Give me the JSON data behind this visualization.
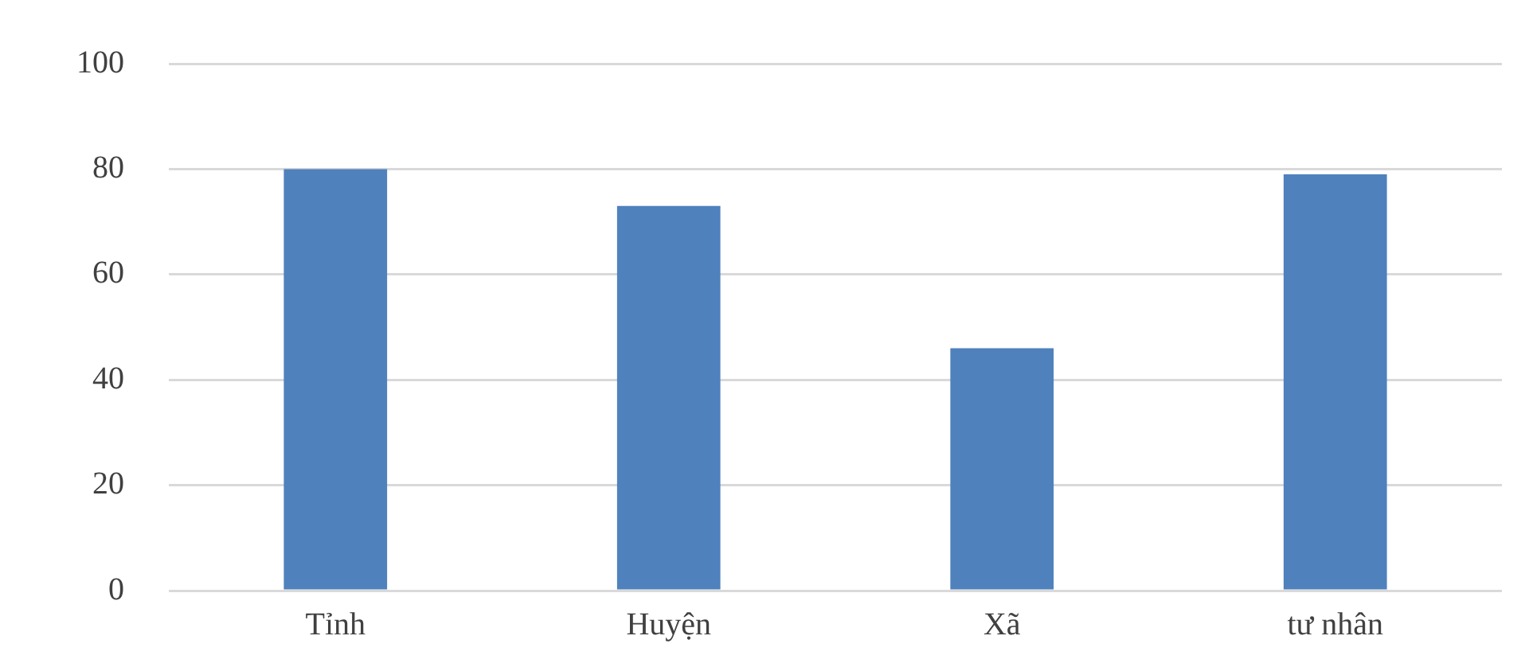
{
  "chart_data": {
    "type": "bar",
    "categories": [
      "Tỉnh",
      "Huyện",
      "Xã",
      "tư nhân"
    ],
    "series": [
      {
        "color": "#4f81bd",
        "values": [
          80,
          73,
          46,
          79
        ]
      }
    ],
    "ylim": [
      0,
      100
    ],
    "yticks": [
      0,
      20,
      40,
      60,
      80,
      100
    ],
    "grid": "y",
    "legend": false
  }
}
